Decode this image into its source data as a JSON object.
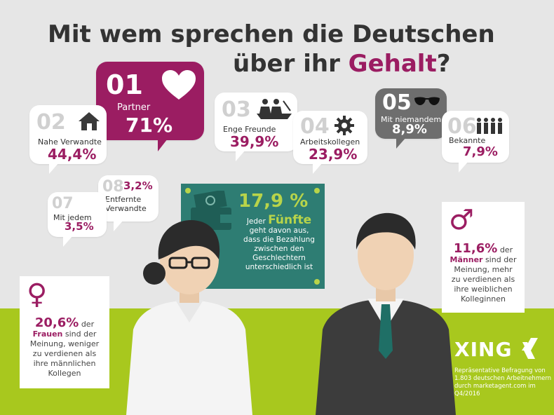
{
  "title": {
    "line1": "Mit wem sprechen die Deutschen",
    "line2_pre": "über ihr ",
    "line2_accent": "Gehalt",
    "line2_post": "?"
  },
  "bubbles": [
    {
      "num": "01",
      "label": "Partner",
      "pct": "71%",
      "icon": "heart-icon"
    },
    {
      "num": "02",
      "label": "Nahe Verwandte",
      "pct": "44,4%",
      "icon": "house-icon"
    },
    {
      "num": "03",
      "label": "Enge Freunde",
      "pct": "39,9%",
      "icon": "rowing-friends-icon"
    },
    {
      "num": "04",
      "label": "Arbeitskollegen",
      "pct": "23,9%",
      "icon": "gear-icon"
    },
    {
      "num": "05",
      "label": "Mit niemandem",
      "pct": "8,9%",
      "icon": "sunglasses-icon"
    },
    {
      "num": "06",
      "label": "Bekannte",
      "pct": "7,9%",
      "icon": "group-icon"
    },
    {
      "num": "07",
      "label": "Mit jedem",
      "pct": "3,5%",
      "icon": ""
    },
    {
      "num": "08",
      "label": "Entfernte\nVerwandte",
      "pct": "3,2%",
      "icon": ""
    }
  ],
  "board": {
    "pct": "17,9 %",
    "pre": "Jeder",
    "accent": "Fünfte",
    "text": "geht davon aus,\ndass die Bezahlung\nzwischen den\nGeschlechtern\nunterschiedlich ist",
    "icon": "wallet-money-icon"
  },
  "women": {
    "symbol": "♀",
    "pct": "20,6%",
    "post_pct": "der",
    "bold": "Frauen",
    "text": "sind der\nMeinung, weniger\nzu verdienen als\nihre männlichen\nKollegen"
  },
  "men": {
    "symbol": "♂",
    "pct": "11,6%",
    "post_pct": "der",
    "bold": "Männer",
    "text": "sind der\nMeinung, mehr\nzu verdienen als\nihre weiblichen\nKolleginnen"
  },
  "brand": {
    "name": "XING",
    "note": "Repräsentative Befragung von\n1.803 deutschen Arbeitnehmern\ndurch marketagent.com im Q4/2016"
  },
  "colors": {
    "accent": "#9b1d62",
    "background": "#e6e6e6",
    "ground": "#a8c81e",
    "board": "#2e7d73",
    "dark_bubble": "#6e6e6e"
  }
}
